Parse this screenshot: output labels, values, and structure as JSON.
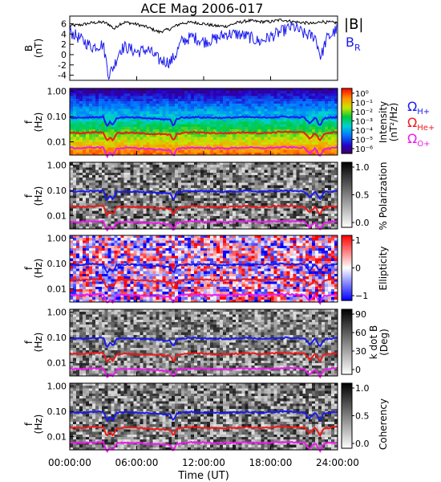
{
  "title": "ACE Mag 2006-017",
  "xaxis": {
    "label": "Time (UT)",
    "range": [
      0,
      24
    ],
    "ticks": [
      {
        "t": 0,
        "label": "00:00:00"
      },
      {
        "t": 6,
        "label": "06:00:00"
      },
      {
        "t": 12,
        "label": "12:00:00"
      },
      {
        "t": 18,
        "label": "18:00:00"
      },
      {
        "t": 24,
        "label": "24:00:00"
      }
    ]
  },
  "chart_data": [
    {
      "type": "line",
      "panel": "magnetic-field",
      "ylabel": "B",
      "yunit": "(nT)",
      "ylim": [
        -5,
        7.5
      ],
      "yticks": [
        "-4",
        "-2",
        "0",
        "2",
        "4",
        "6"
      ],
      "legend": [
        {
          "label": "|B|",
          "color": "#000000"
        },
        {
          "label": "B",
          "sub": "R",
          "color": "#1a1aee"
        }
      ],
      "series": [
        {
          "name": "|B|",
          "color": "#000000",
          "x": [
            0,
            1,
            2,
            3,
            3.5,
            4,
            4.5,
            5,
            6,
            7,
            8,
            9,
            9.5,
            10,
            11,
            12,
            13,
            14,
            15,
            16,
            17,
            18,
            19,
            20,
            21,
            22,
            22.5,
            23,
            24
          ],
          "y": [
            5.6,
            5.8,
            6.2,
            6.3,
            5.9,
            5.0,
            6.0,
            6.3,
            5.9,
            5.3,
            4.4,
            5.0,
            5.6,
            6.1,
            6.3,
            6.0,
            5.6,
            5.5,
            6.2,
            6.6,
            6.4,
            6.4,
            6.8,
            6.4,
            6.2,
            6.0,
            6.5,
            6.3,
            6.2
          ]
        },
        {
          "name": "B_R",
          "color": "#1a1aee",
          "x": [
            0,
            1,
            2,
            3,
            3.5,
            4,
            4.5,
            5,
            6,
            7,
            8,
            9,
            9.5,
            10,
            11,
            12,
            13,
            14,
            15,
            16,
            17,
            18,
            19,
            20,
            21,
            22,
            22.5,
            23,
            24
          ],
          "y": [
            4.5,
            3.0,
            1.5,
            2.0,
            -4.0,
            -2.0,
            1.0,
            1.5,
            0.5,
            1.0,
            -1.0,
            -1.5,
            0.0,
            2.5,
            3.5,
            2.5,
            3.0,
            4.0,
            4.0,
            3.5,
            2.5,
            3.5,
            4.5,
            5.5,
            4.0,
            3.5,
            -0.5,
            3.0,
            5.0
          ]
        }
      ]
    },
    {
      "type": "heatmap",
      "panel": "power-spectral-density",
      "ylabel": "f",
      "yunit": "(Hz)",
      "yscale": "log",
      "ylim": [
        0.003,
        1.3
      ],
      "yticks": [
        {
          "v": 1.0,
          "label": "1.00"
        },
        {
          "v": 0.1,
          "label": "0.10"
        },
        {
          "v": 0.01,
          "label": "0.01"
        }
      ],
      "colorbar": {
        "label": "Intensity",
        "unit": "(nT²/Hz)",
        "colormap": "rainbow",
        "tick_labels": [
          "10⁰",
          "10⁻¹",
          "10⁻²",
          "10⁻³",
          "10⁻⁴",
          "10⁻⁵",
          "10⁻⁶"
        ]
      },
      "cyclotron_legend": [
        {
          "label": "Ω",
          "sub": "H+",
          "color": "#1a1aee"
        },
        {
          "label": "Ω",
          "sub": "He+",
          "color": "#ee1a1a"
        },
        {
          "label": "Ω",
          "sub": "O+",
          "color": "#ee1aee"
        }
      ]
    },
    {
      "type": "heatmap",
      "panel": "percent-polarization",
      "ylabel": "f",
      "yunit": "(Hz)",
      "yscale": "log",
      "colorbar": {
        "label": "% Polarization",
        "colormap": "grayscale",
        "tick_labels": [
          "1.0",
          "0.5",
          "0.0"
        ]
      }
    },
    {
      "type": "heatmap",
      "panel": "ellipticity",
      "ylabel": "f",
      "yunit": "(Hz)",
      "yscale": "log",
      "colorbar": {
        "label": "Ellipticity",
        "colormap": "blue-white-red",
        "tick_labels": [
          "1",
          "0",
          "−1"
        ]
      }
    },
    {
      "type": "heatmap",
      "panel": "k-dot-b",
      "ylabel": "f",
      "yunit": "(Hz)",
      "yscale": "log",
      "colorbar": {
        "label": "k dot B",
        "unit": "(Deg)",
        "colormap": "grayscale",
        "tick_labels": [
          "90",
          "60",
          "30",
          "0"
        ]
      }
    },
    {
      "type": "heatmap",
      "panel": "coherency",
      "ylabel": "f",
      "yunit": "(Hz)",
      "yscale": "log",
      "colorbar": {
        "label": "Coherency",
        "colormap": "grayscale",
        "tick_labels": [
          "1.0",
          "0.5",
          "0.0"
        ]
      }
    }
  ],
  "cyclotron_frequencies": {
    "note_units": "Hz",
    "x": [
      0,
      1,
      2,
      3,
      3.3,
      3.6,
      3.9,
      4.2,
      5,
      6,
      7,
      8,
      9,
      9.3,
      9.6,
      10,
      11,
      12,
      13,
      14,
      15,
      16,
      17,
      18,
      19,
      20,
      21,
      21.5,
      22,
      22.4,
      22.8,
      23.5,
      24
    ],
    "H+": [
      0.092,
      0.09,
      0.095,
      0.096,
      0.04,
      0.06,
      0.045,
      0.088,
      0.092,
      0.09,
      0.085,
      0.08,
      0.075,
      0.04,
      0.082,
      0.09,
      0.095,
      0.092,
      0.09,
      0.088,
      0.093,
      0.095,
      0.09,
      0.093,
      0.098,
      0.095,
      0.092,
      0.05,
      0.09,
      0.04,
      0.085,
      0.092,
      0.095
    ],
    "He+": [
      0.023,
      0.022,
      0.024,
      0.024,
      0.01,
      0.015,
      0.011,
      0.022,
      0.023,
      0.022,
      0.021,
      0.02,
      0.019,
      0.01,
      0.02,
      0.022,
      0.024,
      0.023,
      0.022,
      0.022,
      0.023,
      0.024,
      0.022,
      0.023,
      0.025,
      0.024,
      0.023,
      0.013,
      0.022,
      0.01,
      0.021,
      0.023,
      0.024
    ],
    "O+": [
      0.0058,
      0.0056,
      0.006,
      0.006,
      0.0025,
      0.0037,
      0.0028,
      0.0055,
      0.0058,
      0.0056,
      0.0053,
      0.005,
      0.0047,
      0.0025,
      0.0051,
      0.0056,
      0.006,
      0.0058,
      0.0056,
      0.0055,
      0.0058,
      0.006,
      0.0056,
      0.0058,
      0.0061,
      0.006,
      0.0058,
      0.0032,
      0.0056,
      0.0025,
      0.0053,
      0.0058,
      0.006
    ]
  }
}
